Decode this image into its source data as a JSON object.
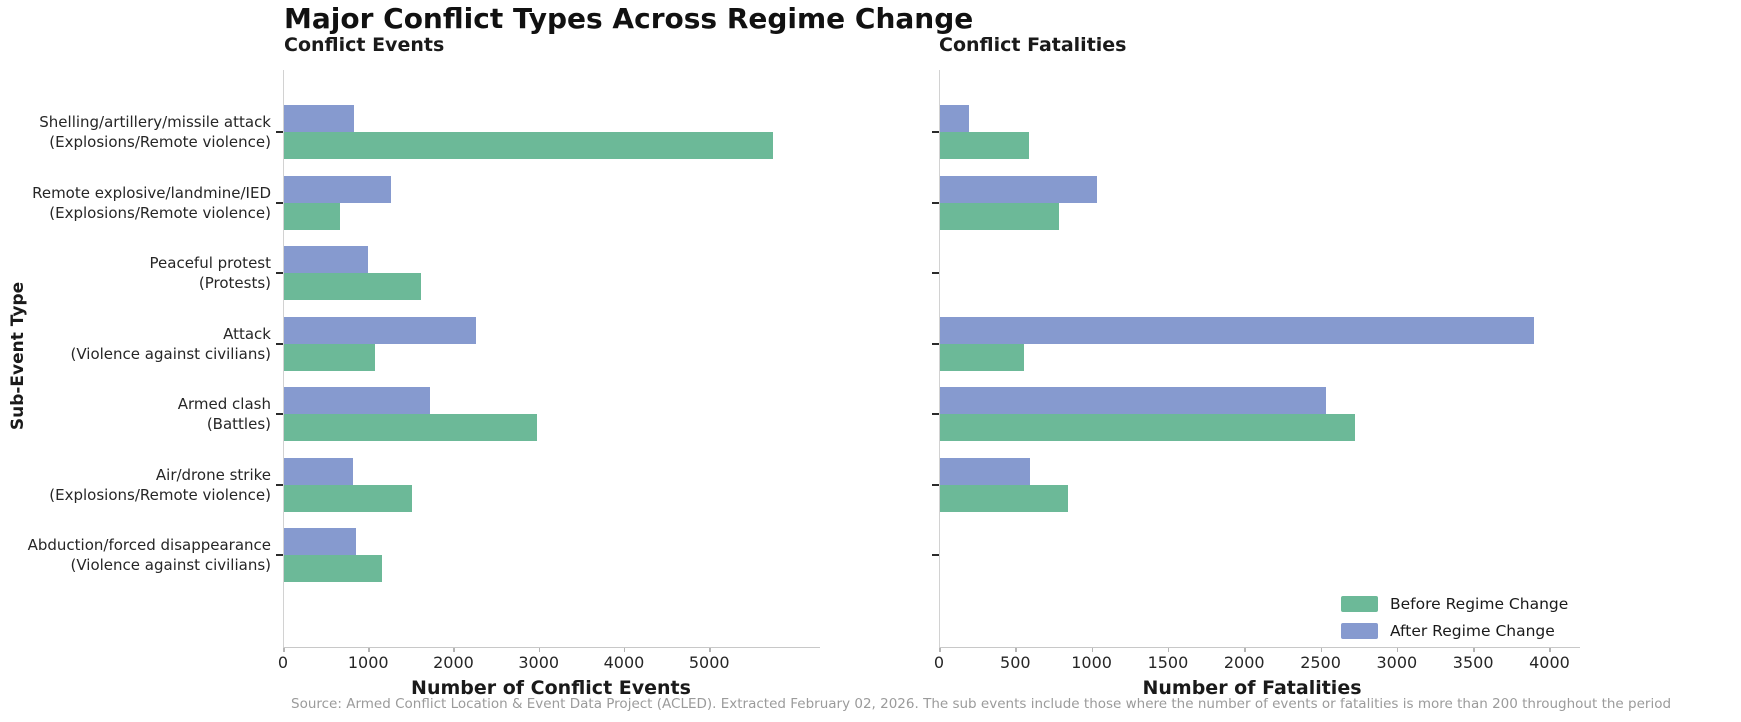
{
  "title": "Major Conflict Types Across Regime Change",
  "ylabel": "Sub-Event Type",
  "footer": "Source: Armed Conflict Location & Event Data Project (ACLED). Extracted February 02, 2026. The sub events include those where the number of events or fatalities is more than 200 throughout the period",
  "colors": {
    "before": "#6cb998",
    "after": "#869acf",
    "spine": "#d2d2d2",
    "tick_text": "#262626",
    "footer_text": "#9b9b9b"
  },
  "legend": {
    "items": [
      {
        "label": "Before Regime Change",
        "color": "#6cb998"
      },
      {
        "label": "After Regime Change",
        "color": "#869acf"
      }
    ],
    "position": "lower right"
  },
  "chart_data": {
    "type": "bar",
    "orientation": "horizontal",
    "grid": false,
    "categories": [
      "Shelling/artillery/missile attack",
      "Remote explosive/landmine/IED",
      "Peaceful protest",
      "Attack",
      "Armed clash",
      "Air/drone strike",
      "Abduction/forced disappearance"
    ],
    "category_sublabels": [
      "(Explosions/Remote violence)",
      "(Explosions/Remote violence)",
      "(Protests)",
      "(Violence against civilians)",
      "(Battles)",
      "(Explosions/Remote violence)",
      "(Violence against civilians)"
    ],
    "charts": [
      {
        "title": "Conflict Events",
        "xlabel": "Number of Conflict Events",
        "xlim": [
          0,
          6300
        ],
        "xticks": [
          0,
          1000,
          2000,
          3000,
          4000,
          5000
        ],
        "series": [
          {
            "name": "After Regime Change",
            "color": "#869acf",
            "values": [
              820,
              1250,
              980,
              2250,
              1710,
              810,
              840
            ]
          },
          {
            "name": "Before Regime Change",
            "color": "#6cb998",
            "values": [
              5740,
              660,
              1610,
              1070,
              2970,
              1500,
              1150
            ]
          }
        ]
      },
      {
        "title": "Conflict Fatalities",
        "xlabel": "Number of Fatalities",
        "xlim": [
          0,
          4200
        ],
        "xticks": [
          0,
          500,
          1000,
          1500,
          2000,
          2500,
          3000,
          3500,
          4000
        ],
        "series": [
          {
            "name": "After Regime Change",
            "color": "#869acf",
            "values": [
              190,
              1030,
              0,
              3890,
              2530,
              590,
              0
            ]
          },
          {
            "name": "Before Regime Change",
            "color": "#6cb998",
            "values": [
              580,
              780,
              0,
              550,
              2720,
              840,
              0
            ]
          }
        ]
      }
    ]
  }
}
